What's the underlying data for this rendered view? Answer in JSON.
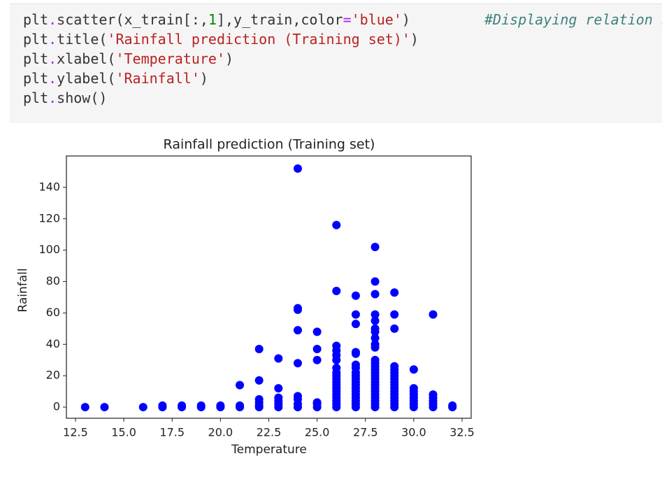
{
  "code": {
    "lines": [
      {
        "tokens": [
          [
            "plt",
            "#333333"
          ],
          [
            ".",
            "#aa22ff"
          ],
          [
            "scatter(x_train[:,",
            "#333333"
          ],
          [
            "1",
            "#008800"
          ],
          [
            "],y_train,color",
            "#333333"
          ],
          [
            "=",
            "#aa22ff"
          ],
          [
            "'blue'",
            "#ba2121"
          ],
          [
            ")",
            "#333333"
          ]
        ],
        "comment": {
          "text": "#Displaying relation b",
          "color": "#408080"
        }
      },
      {
        "tokens": [
          [
            "plt",
            "#333333"
          ],
          [
            ".",
            "#aa22ff"
          ],
          [
            "title(",
            "#333333"
          ],
          [
            "'Rainfall prediction (Training set)'",
            "#ba2121"
          ],
          [
            ")",
            "#333333"
          ]
        ]
      },
      {
        "tokens": [
          [
            "plt",
            "#333333"
          ],
          [
            ".",
            "#aa22ff"
          ],
          [
            "xlabel(",
            "#333333"
          ],
          [
            "'Temperature'",
            "#ba2121"
          ],
          [
            ")",
            "#333333"
          ]
        ]
      },
      {
        "tokens": [
          [
            "plt",
            "#333333"
          ],
          [
            ".",
            "#aa22ff"
          ],
          [
            "ylabel(",
            "#333333"
          ],
          [
            "'Rainfall'",
            "#ba2121"
          ],
          [
            ")",
            "#333333"
          ]
        ]
      },
      {
        "tokens": [
          [
            "plt",
            "#333333"
          ],
          [
            ".",
            "#aa22ff"
          ],
          [
            "show()",
            "#333333"
          ]
        ]
      }
    ]
  },
  "chart_data": {
    "type": "scatter",
    "title": "Rainfall prediction (Training set)",
    "x_label": "Temperature",
    "y_label": "Rainfall",
    "color": "#0000ff",
    "xlim": [
      12.03,
      32.97
    ],
    "ylim": [
      -7.1,
      160
    ],
    "xticks": [
      12.5,
      15.0,
      17.5,
      20.0,
      22.5,
      25.0,
      27.5,
      30.0,
      32.5
    ],
    "yticks": [
      0,
      20,
      40,
      60,
      80,
      100,
      120,
      140
    ],
    "x": [
      13,
      14,
      16,
      17,
      17,
      18,
      18,
      19,
      19,
      20,
      20,
      21,
      21,
      21,
      22,
      22,
      22,
      22,
      22,
      22,
      23,
      23,
      23,
      23,
      23,
      23,
      24,
      24,
      24,
      24,
      24,
      24,
      24,
      24,
      24,
      25,
      25,
      25,
      25,
      25,
      25,
      26,
      26,
      26,
      26,
      26,
      26,
      26,
      26,
      26,
      26,
      26,
      26,
      26,
      26,
      26,
      26,
      26,
      26,
      26,
      27,
      27,
      27,
      27,
      27,
      27,
      27,
      27,
      27,
      27,
      27,
      27,
      27,
      27,
      27,
      27,
      27,
      27,
      27,
      28,
      28,
      28,
      28,
      28,
      28,
      28,
      28,
      28,
      28,
      28,
      28,
      28,
      28,
      28,
      28,
      28,
      28,
      28,
      28,
      28,
      28,
      28,
      28,
      28,
      28,
      29,
      29,
      29,
      29,
      29,
      29,
      29,
      29,
      29,
      29,
      29,
      29,
      29,
      29,
      29,
      29,
      29,
      30,
      30,
      30,
      30,
      30,
      30,
      30,
      30,
      31,
      31,
      31,
      31,
      31,
      31,
      32,
      32
    ],
    "y": [
      0,
      0,
      0,
      0,
      1,
      0,
      1,
      0,
      1,
      0,
      1,
      0,
      1,
      14,
      0,
      1,
      3,
      5,
      17,
      37,
      0,
      2,
      4,
      6,
      12,
      31,
      0,
      2,
      5,
      7,
      28,
      49,
      62,
      63,
      152,
      0,
      2,
      3,
      30,
      37,
      48,
      0,
      2,
      4,
      6,
      8,
      10,
      12,
      14,
      16,
      18,
      20,
      22,
      25,
      30,
      33,
      36,
      39,
      74,
      116,
      0,
      2,
      4,
      6,
      8,
      10,
      12,
      14,
      16,
      18,
      20,
      22,
      25,
      27,
      34,
      35,
      53,
      59,
      71,
      0,
      2,
      4,
      6,
      8,
      10,
      12,
      14,
      16,
      18,
      20,
      22,
      24,
      26,
      28,
      30,
      38,
      40,
      44,
      48,
      50,
      55,
      59,
      72,
      80,
      102,
      0,
      2,
      4,
      6,
      8,
      10,
      12,
      14,
      16,
      18,
      20,
      22,
      24,
      26,
      50,
      59,
      73,
      0,
      2,
      4,
      6,
      8,
      10,
      12,
      24,
      0,
      2,
      4,
      6,
      8,
      59,
      0,
      1
    ]
  }
}
